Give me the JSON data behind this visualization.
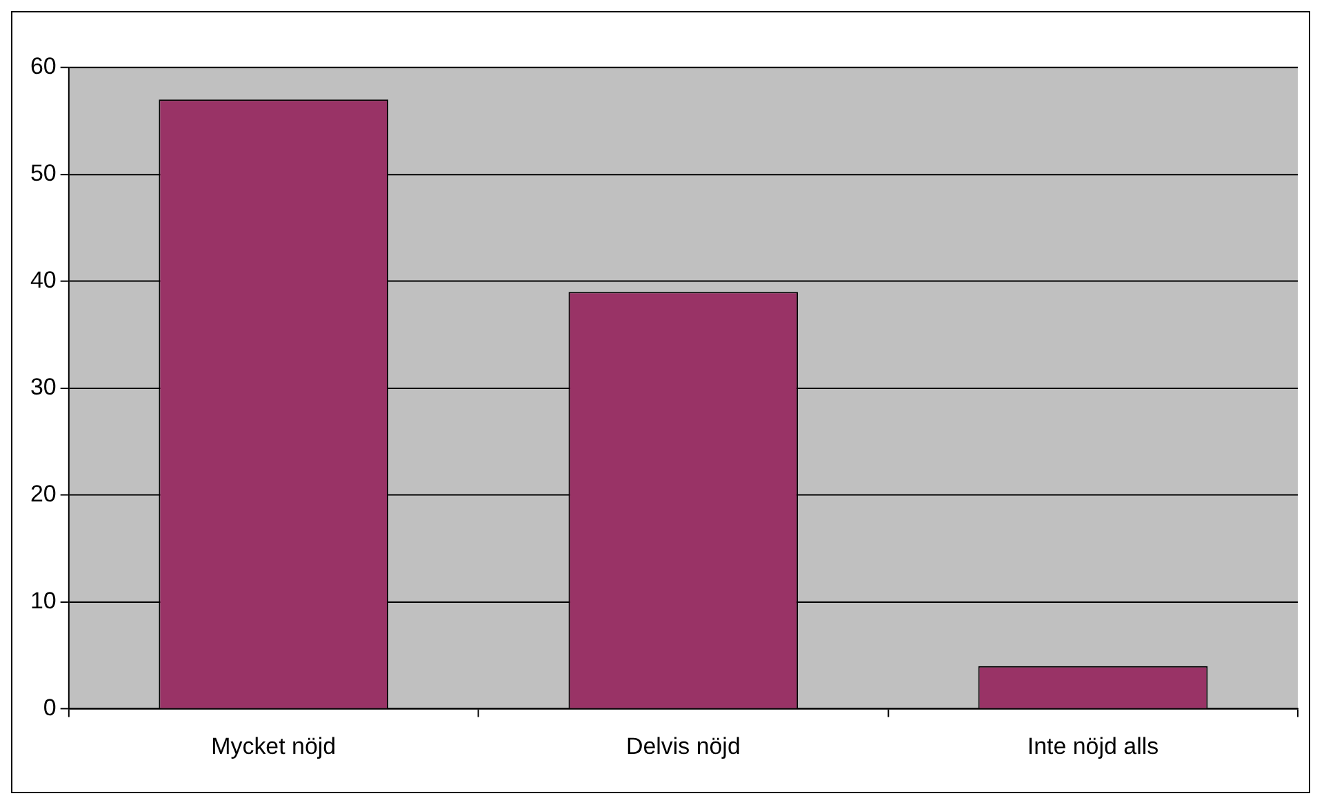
{
  "chart_data": {
    "type": "bar",
    "categories": [
      "Mycket nöjd",
      "Delvis nöjd",
      "Inte nöjd alls"
    ],
    "values": [
      57,
      39,
      4
    ],
    "color": "#993366",
    "ylim": [
      0,
      60
    ],
    "yticks": [
      0,
      10,
      20,
      30,
      40,
      50,
      60
    ],
    "grid": "y",
    "legend": false
  }
}
